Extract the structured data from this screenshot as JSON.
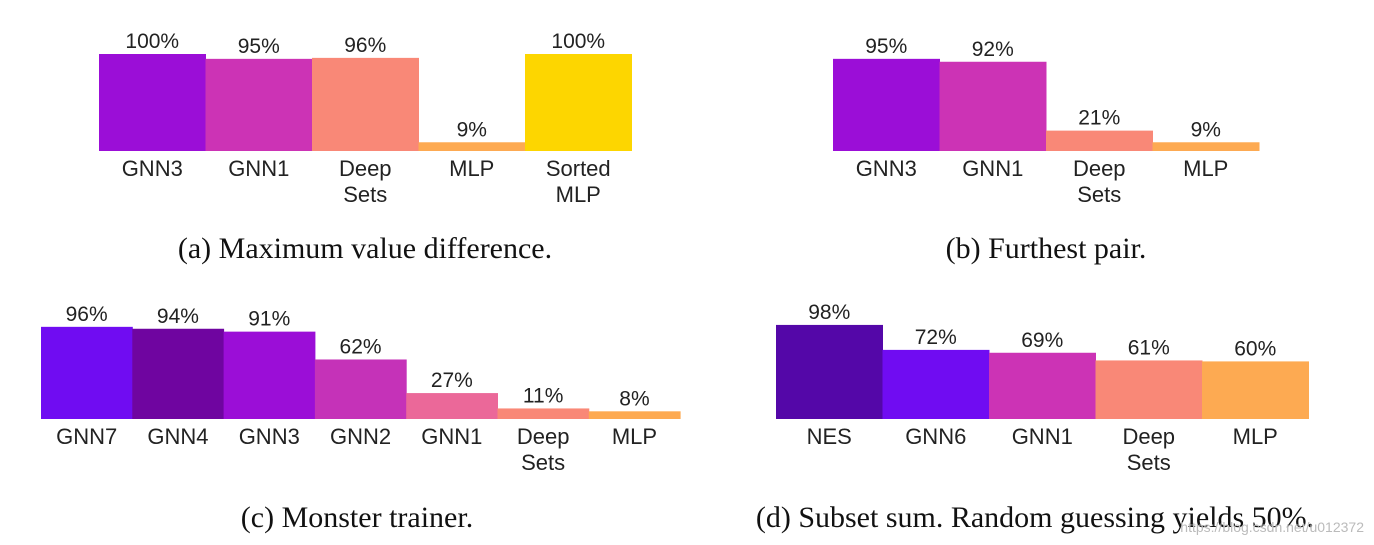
{
  "chart_data": [
    {
      "type": "bar",
      "title": "(a) Maximum value difference.",
      "categories": [
        "GNN3",
        "GNN1",
        "Deep\nSets",
        "MLP",
        "Sorted\nMLP"
      ],
      "values": [
        100,
        95,
        96,
        9,
        100
      ],
      "value_labels": [
        "100%",
        "95%",
        "96%",
        "9%",
        "100%"
      ],
      "colors": [
        "#9b0ed7",
        "#cc33b5",
        "#f98877",
        "#fdaa52",
        "#fdd600"
      ],
      "ylim": [
        0,
        100
      ],
      "xlabel": "",
      "ylabel": "",
      "grid": false
    },
    {
      "type": "bar",
      "title": "(b) Furthest pair.",
      "categories": [
        "GNN3",
        "GNN1",
        "Deep\nSets",
        "MLP"
      ],
      "values": [
        95,
        92,
        21,
        9
      ],
      "value_labels": [
        "95%",
        "92%",
        "21%",
        "9%"
      ],
      "colors": [
        "#9b0ed7",
        "#cc33b5",
        "#f98877",
        "#fdaa52"
      ],
      "ylim": [
        0,
        100
      ],
      "xlabel": "",
      "ylabel": "",
      "grid": false
    },
    {
      "type": "bar",
      "title": "(c) Monster trainer.",
      "categories": [
        "GNN7",
        "GNN4",
        "GNN3",
        "GNN2",
        "GNN1",
        "Deep\nSets",
        "MLP"
      ],
      "values": [
        96,
        94,
        91,
        62,
        27,
        11,
        8
      ],
      "value_labels": [
        "96%",
        "94%",
        "91%",
        "62%",
        "27%",
        "11%",
        "8%"
      ],
      "colors": [
        "#700cf2",
        "#6f05a0",
        "#9b0ed7",
        "#c532b8",
        "#eb6899",
        "#f98877",
        "#fdaa52"
      ],
      "ylim": [
        0,
        100
      ],
      "xlabel": "",
      "ylabel": "",
      "grid": false
    },
    {
      "type": "bar",
      "title": "(d) Subset sum. Random guessing yields 50%.",
      "categories": [
        "NES",
        "GNN6",
        "GNN1",
        "Deep\nSets",
        "MLP"
      ],
      "values": [
        98,
        72,
        69,
        61,
        60
      ],
      "value_labels": [
        "98%",
        "72%",
        "69%",
        "61%",
        "60%"
      ],
      "colors": [
        "#5407a8",
        "#700cf2",
        "#cc33b5",
        "#f98877",
        "#fdaa52"
      ],
      "ylim": [
        0,
        100
      ],
      "xlabel": "",
      "ylabel": "",
      "grid": false
    }
  ],
  "watermark": "https://blog.csdn.net/u012372"
}
